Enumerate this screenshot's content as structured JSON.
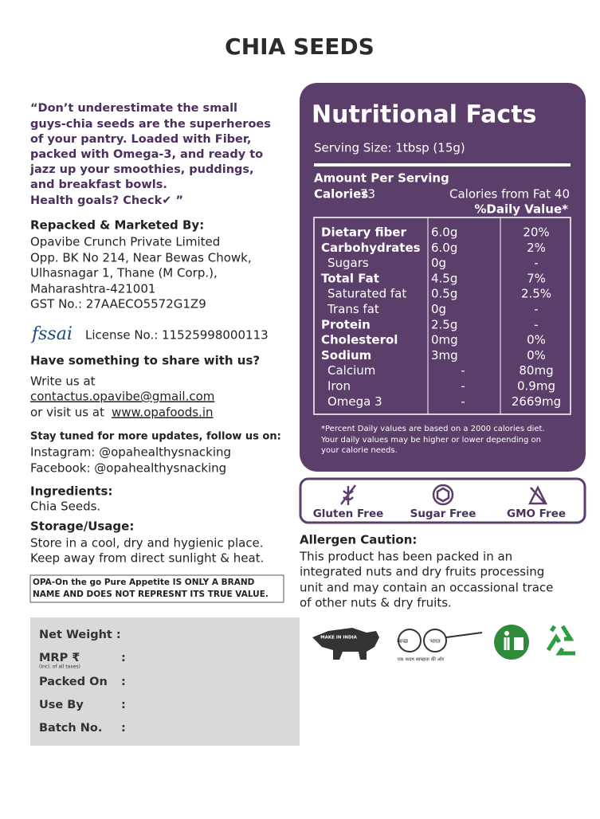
{
  "header": {
    "title": "CHIA SEEDS"
  },
  "quote": [
    "“Don’t underestimate the small",
    "guys-chia seeds are the superheroes",
    "of your pantry. Loaded with Fiber,",
    "packed with Omega-3, and ready to",
    "jazz up your smoothies, puddings,",
    "and breakfast bowls.",
    "Health goals? Check✔ ”"
  ],
  "marketer": {
    "heading": "Repacked & Marketed By:",
    "lines": [
      "Opavibe Crunch Private Limited",
      "Opp. BK No 214, Near Bewas Chowk,",
      "Ulhasnagar 1, Thane (M Corp.),",
      "Maharashtra-421001",
      "GST No.: 27AAECO5572G1Z9"
    ]
  },
  "fssai": {
    "logo": "fssai",
    "license": "License No.: 11525998000113"
  },
  "contact": {
    "heading": "Have something to share with us?",
    "write": "Write us at",
    "email": "contactus.opavibe@gmail.com",
    "visit": "or visit us at",
    "website": "www.opafoods.in"
  },
  "social": {
    "heading": "Stay tuned for more updates, follow us on:",
    "lines": [
      "Instagram: @opahealthysnacking",
      "Facebook: @opahealthysnacking"
    ]
  },
  "ingredients": {
    "heading": "Ingredients:",
    "text": "Chia Seeds."
  },
  "storage": {
    "heading": "Storage/Usage:",
    "lines": [
      "Store in a cool, dry and hygienic place.",
      "Keep away from direct sunlight & heat."
    ]
  },
  "disclaimer": [
    "OPA-On the go Pure Appetite IS ONLY A BRAND",
    "NAME AND DOES NOT REPRESNT ITS TRUE VALUE."
  ],
  "batch": {
    "separator": ":",
    "rows": [
      "Net Weight :",
      "MRP ₹",
      "Packed On",
      "Use By",
      "Batch No."
    ],
    "mrp_note": "(Incl. of all taxes)"
  },
  "nutrition": {
    "title": "Nutritional Facts",
    "serving": "Serving Size: 1tbsp (15g)",
    "amount_heading": "Amount Per Serving",
    "calories_label": "Calories",
    "calories": "73",
    "calories_fat": "Calories from Fat 40",
    "daily_value": "%Daily Value*",
    "rows": [
      [
        "Dietary fiber",
        "6.0g",
        "20%"
      ],
      [
        "Carbohydrates",
        "6.0g",
        "2%"
      ],
      [
        "Sugars",
        "0g",
        "-"
      ],
      [
        "Total Fat",
        "4.5g",
        "7%"
      ],
      [
        "Saturated fat",
        "0.5g",
        "2.5%"
      ],
      [
        "Trans fat",
        "0g",
        "-"
      ],
      [
        "Protein",
        "2.5g",
        "-"
      ],
      [
        "Cholesterol",
        "0mg",
        "0%"
      ],
      [
        "Sodium",
        "3mg",
        "0%"
      ],
      [
        "Calcium",
        "-",
        "80mg"
      ],
      [
        "Iron",
        "-",
        "0.9mg"
      ],
      [
        "Omega 3",
        "-",
        "2669mg"
      ]
    ],
    "footnote": [
      "*Percent Daily values are based on a 2000 calories diet.",
      "Your daily values may be higher or lower depending on",
      "your calorie needs."
    ]
  },
  "badges": [
    "Gluten Free",
    "Sugar Free",
    "GMO Free"
  ],
  "allergen": {
    "heading": "Allergen Caution:",
    "lines": [
      "This product has been packed in an",
      "integrated nuts and dry fruits processing",
      "unit and may contain an occassional trace",
      "of other nuts & dry fruits."
    ]
  },
  "logos": {
    "make_in_india": "MAKE IN INDIA",
    "swachh": "स्वच्छ",
    "bharat": "भारत",
    "swachh_tagline": "एक कदम स्वच्छता की ओर"
  }
}
